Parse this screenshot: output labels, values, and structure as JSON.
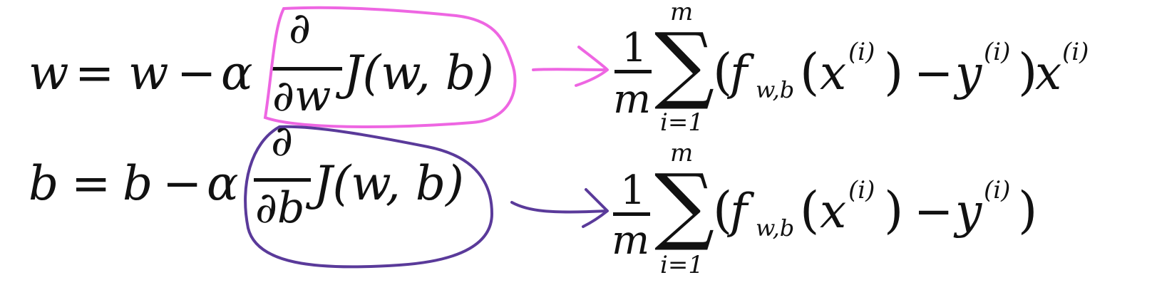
{
  "row1": {
    "lhs": "w",
    "eq": "=",
    "w_term": "w",
    "minus": "−",
    "alpha": "α",
    "frac_num": "∂",
    "frac_den": "∂w",
    "J": "J(w, b)",
    "rhs_one": "1",
    "rhs_m": "m",
    "sum": "∑",
    "sum_top": "m",
    "sum_bottom": "i=1",
    "open": "(",
    "f": "f",
    "f_sub": "w,b",
    "x_open": "(",
    "x": "x",
    "x_sup": "(i)",
    "x_close": ")",
    "minus2": "−",
    "y": "y",
    "y_sup": "(i)",
    "close": ")",
    "tail_x": "x",
    "tail_sup": "(i)"
  },
  "row2": {
    "lhs": "b",
    "eq": "=",
    "b_term": "b",
    "minus": "−",
    "alpha": "α",
    "frac_num": "∂",
    "frac_den": "∂b",
    "J": "J(w, b)",
    "rhs_one": "1",
    "rhs_m": "m",
    "sum": "∑",
    "sum_top": "m",
    "sum_bottom": "i=1",
    "open": "(",
    "f": "f",
    "f_sub": "w,b",
    "x_open": "(",
    "x": "x",
    "x_sup": "(i)",
    "x_close": ")",
    "minus2": "−",
    "y": "y",
    "y_sup": "(i)",
    "close": ")"
  },
  "colors": {
    "ink": "#111111",
    "highlight_pink": "#ee66e2",
    "highlight_purple": "#5a3a9a"
  }
}
